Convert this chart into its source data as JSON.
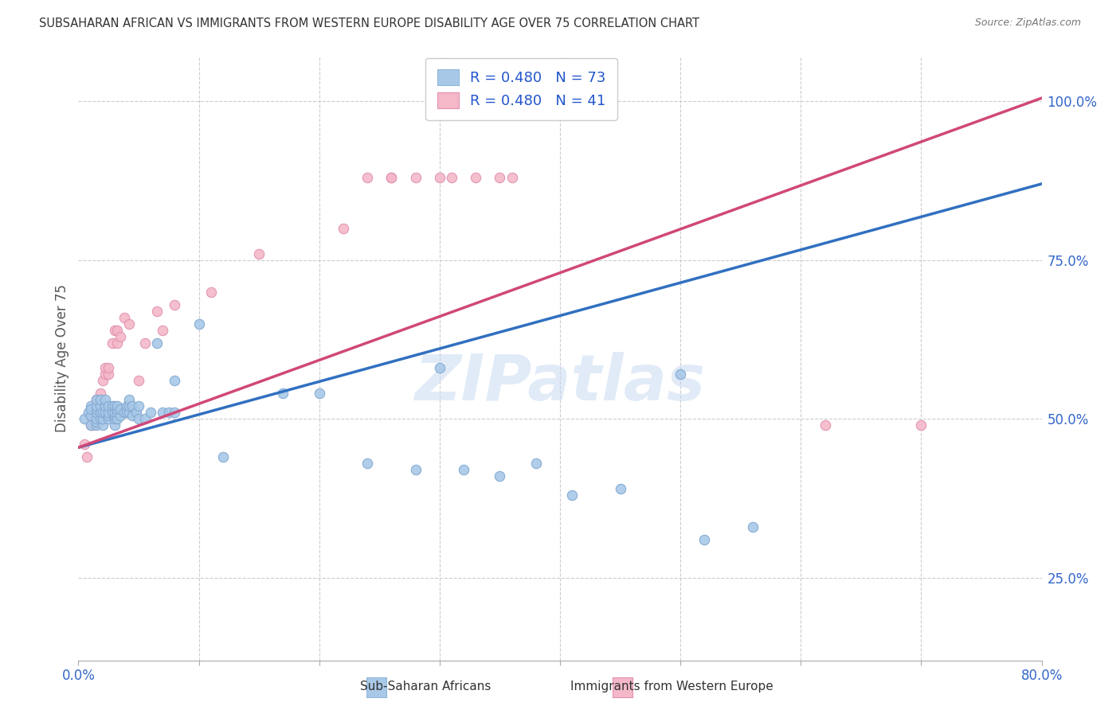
{
  "title": "SUBSAHARAN AFRICAN VS IMMIGRANTS FROM WESTERN EUROPE DISABILITY AGE OVER 75 CORRELATION CHART",
  "source": "Source: ZipAtlas.com",
  "ylabel": "Disability Age Over 75",
  "right_yticks": [
    "25.0%",
    "50.0%",
    "75.0%",
    "100.0%"
  ],
  "right_ytick_vals": [
    0.25,
    0.5,
    0.75,
    1.0
  ],
  "legend1_r": "R = 0.480",
  "legend1_n": "N = 73",
  "legend2_r": "R = 0.480",
  "legend2_n": "N = 41",
  "legend1_label": "Sub-Saharan Africans",
  "legend2_label": "Immigrants from Western Europe",
  "blue_color": "#a8c8e8",
  "pink_color": "#f4b8c8",
  "blue_line_color": "#3070c0",
  "pink_line_color": "#d04878",
  "title_color": "#333333",
  "source_color": "#777777",
  "tick_color": "#3366cc",
  "watermark": "ZIPatlas",
  "blue_scatter_x": [
    0.005,
    0.008,
    0.01,
    0.01,
    0.01,
    0.01,
    0.015,
    0.015,
    0.015,
    0.015,
    0.015,
    0.015,
    0.015,
    0.018,
    0.018,
    0.018,
    0.018,
    0.02,
    0.02,
    0.02,
    0.022,
    0.022,
    0.022,
    0.025,
    0.025,
    0.025,
    0.025,
    0.028,
    0.028,
    0.03,
    0.03,
    0.03,
    0.03,
    0.03,
    0.032,
    0.032,
    0.032,
    0.032,
    0.035,
    0.035,
    0.038,
    0.04,
    0.04,
    0.042,
    0.042,
    0.042,
    0.045,
    0.045,
    0.048,
    0.05,
    0.05,
    0.055,
    0.06,
    0.065,
    0.07,
    0.075,
    0.08,
    0.08,
    0.1,
    0.12,
    0.17,
    0.2,
    0.24,
    0.28,
    0.3,
    0.32,
    0.35,
    0.38,
    0.41,
    0.45,
    0.5,
    0.52,
    0.56
  ],
  "blue_scatter_y": [
    0.5,
    0.51,
    0.52,
    0.49,
    0.505,
    0.515,
    0.49,
    0.495,
    0.5,
    0.51,
    0.515,
    0.52,
    0.53,
    0.5,
    0.51,
    0.52,
    0.53,
    0.49,
    0.5,
    0.51,
    0.51,
    0.52,
    0.53,
    0.5,
    0.505,
    0.51,
    0.52,
    0.51,
    0.52,
    0.49,
    0.5,
    0.505,
    0.51,
    0.52,
    0.5,
    0.51,
    0.515,
    0.52,
    0.505,
    0.515,
    0.51,
    0.51,
    0.52,
    0.51,
    0.52,
    0.53,
    0.505,
    0.52,
    0.51,
    0.5,
    0.52,
    0.5,
    0.51,
    0.62,
    0.51,
    0.51,
    0.51,
    0.56,
    0.65,
    0.44,
    0.54,
    0.54,
    0.43,
    0.42,
    0.58,
    0.42,
    0.41,
    0.43,
    0.38,
    0.39,
    0.57,
    0.31,
    0.33
  ],
  "pink_scatter_x": [
    0.005,
    0.007,
    0.01,
    0.01,
    0.012,
    0.012,
    0.015,
    0.015,
    0.015,
    0.018,
    0.02,
    0.022,
    0.022,
    0.025,
    0.025,
    0.028,
    0.03,
    0.032,
    0.032,
    0.035,
    0.038,
    0.042,
    0.05,
    0.055,
    0.065,
    0.07,
    0.08,
    0.11,
    0.15,
    0.22,
    0.24,
    0.26,
    0.26,
    0.28,
    0.3,
    0.31,
    0.33,
    0.35,
    0.36,
    0.62,
    0.7
  ],
  "pink_scatter_y": [
    0.46,
    0.44,
    0.49,
    0.5,
    0.49,
    0.5,
    0.51,
    0.52,
    0.53,
    0.54,
    0.56,
    0.57,
    0.58,
    0.57,
    0.58,
    0.62,
    0.64,
    0.62,
    0.64,
    0.63,
    0.66,
    0.65,
    0.56,
    0.62,
    0.67,
    0.64,
    0.68,
    0.7,
    0.76,
    0.8,
    0.88,
    0.88,
    0.88,
    0.88,
    0.88,
    0.88,
    0.88,
    0.88,
    0.88,
    0.49,
    0.49
  ],
  "blue_line_x0": 0.0,
  "blue_line_y0": 0.455,
  "blue_line_x1": 0.8,
  "blue_line_y1": 0.87,
  "pink_line_x0": 0.0,
  "pink_line_y0": 0.455,
  "pink_line_x1": 0.8,
  "pink_line_y1": 1.005,
  "xmin": 0.0,
  "xmax": 0.8,
  "ymin": 0.12,
  "ymax": 1.07
}
